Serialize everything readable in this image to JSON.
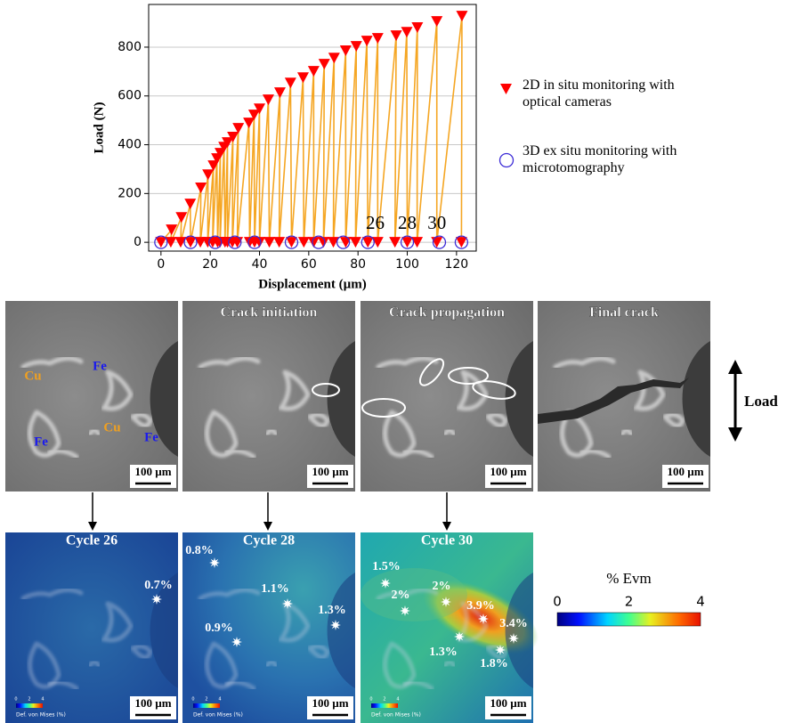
{
  "chart_data": {
    "type": "line",
    "x_label": "Displacement (µm)",
    "y_label": "Load (N)",
    "xlim": [
      -5,
      128
    ],
    "ylim": [
      -36,
      975
    ],
    "xticks": [
      0,
      20,
      40,
      60,
      80,
      100,
      120
    ],
    "yticks": [
      0,
      200,
      400,
      600,
      800
    ],
    "grid": "y",
    "series": [
      {
        "name": "2D in situ monitoring with optical cameras",
        "color": "#ff0000",
        "line_color": "#f5a623",
        "marker": "triangle-down",
        "x": [
          0,
          4.3,
          4,
          8.3,
          8,
          11.9,
          12,
          16.2,
          16,
          19.1,
          19,
          21.3,
          21,
          22.7,
          23,
          24.1,
          24,
          25.6,
          26,
          27,
          27,
          29.2,
          29,
          31.4,
          31,
          35.7,
          36,
          37.8,
          38,
          40,
          40,
          43.6,
          44,
          48.3,
          48,
          52.6,
          53,
          57.7,
          58,
          62,
          62,
          66.3,
          66,
          70.3,
          70,
          75,
          75,
          79.3,
          79,
          83.6,
          84,
          88,
          88,
          95.5,
          95,
          99.8,
          100,
          104.1,
          104,
          112,
          112,
          122.2,
          122
        ],
        "values": [
          0,
          51,
          0,
          102,
          0,
          157,
          0,
          223,
          0,
          277,
          0,
          314,
          0,
          343,
          0,
          365,
          0,
          390,
          0,
          409,
          0,
          431,
          0,
          467,
          0,
          489,
          0,
          522,
          0,
          547,
          0,
          584,
          0,
          613,
          0,
          653,
          0,
          675,
          0,
          701,
          0,
          730,
          0,
          755,
          0,
          785,
          0,
          803,
          0,
          825,
          0,
          836,
          0,
          847,
          0,
          861,
          0,
          880,
          0,
          905,
          0,
          927,
          0
        ]
      },
      {
        "name": "3D ex situ monitoring with microtomography",
        "color": "#3b2bd6",
        "marker": "circle",
        "x": [
          0,
          12,
          22,
          30,
          38,
          53,
          64,
          74,
          84,
          100,
          113,
          122
        ],
        "values": [
          0,
          0,
          0,
          0,
          0,
          0,
          0,
          0,
          0,
          0,
          0,
          0
        ]
      }
    ],
    "annotations": [
      {
        "text": "26",
        "x": 87
      },
      {
        "text": "28",
        "x": 100
      },
      {
        "text": "30",
        "x": 112
      }
    ]
  },
  "micrographs": [
    {
      "scale_bar": "100 µm",
      "labels": [
        "Cu",
        "Fe",
        "Cu",
        "Fe",
        "Fe"
      ]
    },
    {
      "title": "Crack initiation",
      "scale_bar": "100 µm"
    },
    {
      "title": "Crack propagation",
      "scale_bar": "100 µm"
    },
    {
      "title": "Final crack",
      "scale_bar": "100 µm"
    }
  ],
  "load_arrow": "Load",
  "strain_maps": [
    {
      "title": "Cycle 26",
      "scale_bar": "100 µm",
      "points": [
        "0.7%"
      ],
      "legend_label": "Def. von Mises (%)",
      "legend_ticks": [
        "0",
        "2",
        "4"
      ]
    },
    {
      "title": "Cycle 28",
      "scale_bar": "100 µm",
      "points": [
        "0.8%",
        "1.1%",
        "0.9%",
        "1.3%"
      ],
      "legend_label": "Def. von Mises (%)",
      "legend_ticks": [
        "0",
        "2",
        "4"
      ]
    },
    {
      "title": "Cycle 30",
      "scale_bar": "100 µm",
      "points": [
        "1.5%",
        "2%",
        "3.9%",
        "3.4%",
        "2%",
        "1.3%",
        "1.8%"
      ],
      "legend_label": "Def. von Mises (%)",
      "legend_ticks": [
        "0",
        "2",
        "4"
      ]
    }
  ],
  "colorbar": {
    "label": "% Evm",
    "range": [
      0,
      4
    ],
    "ticks": [
      0,
      2,
      4
    ]
  }
}
